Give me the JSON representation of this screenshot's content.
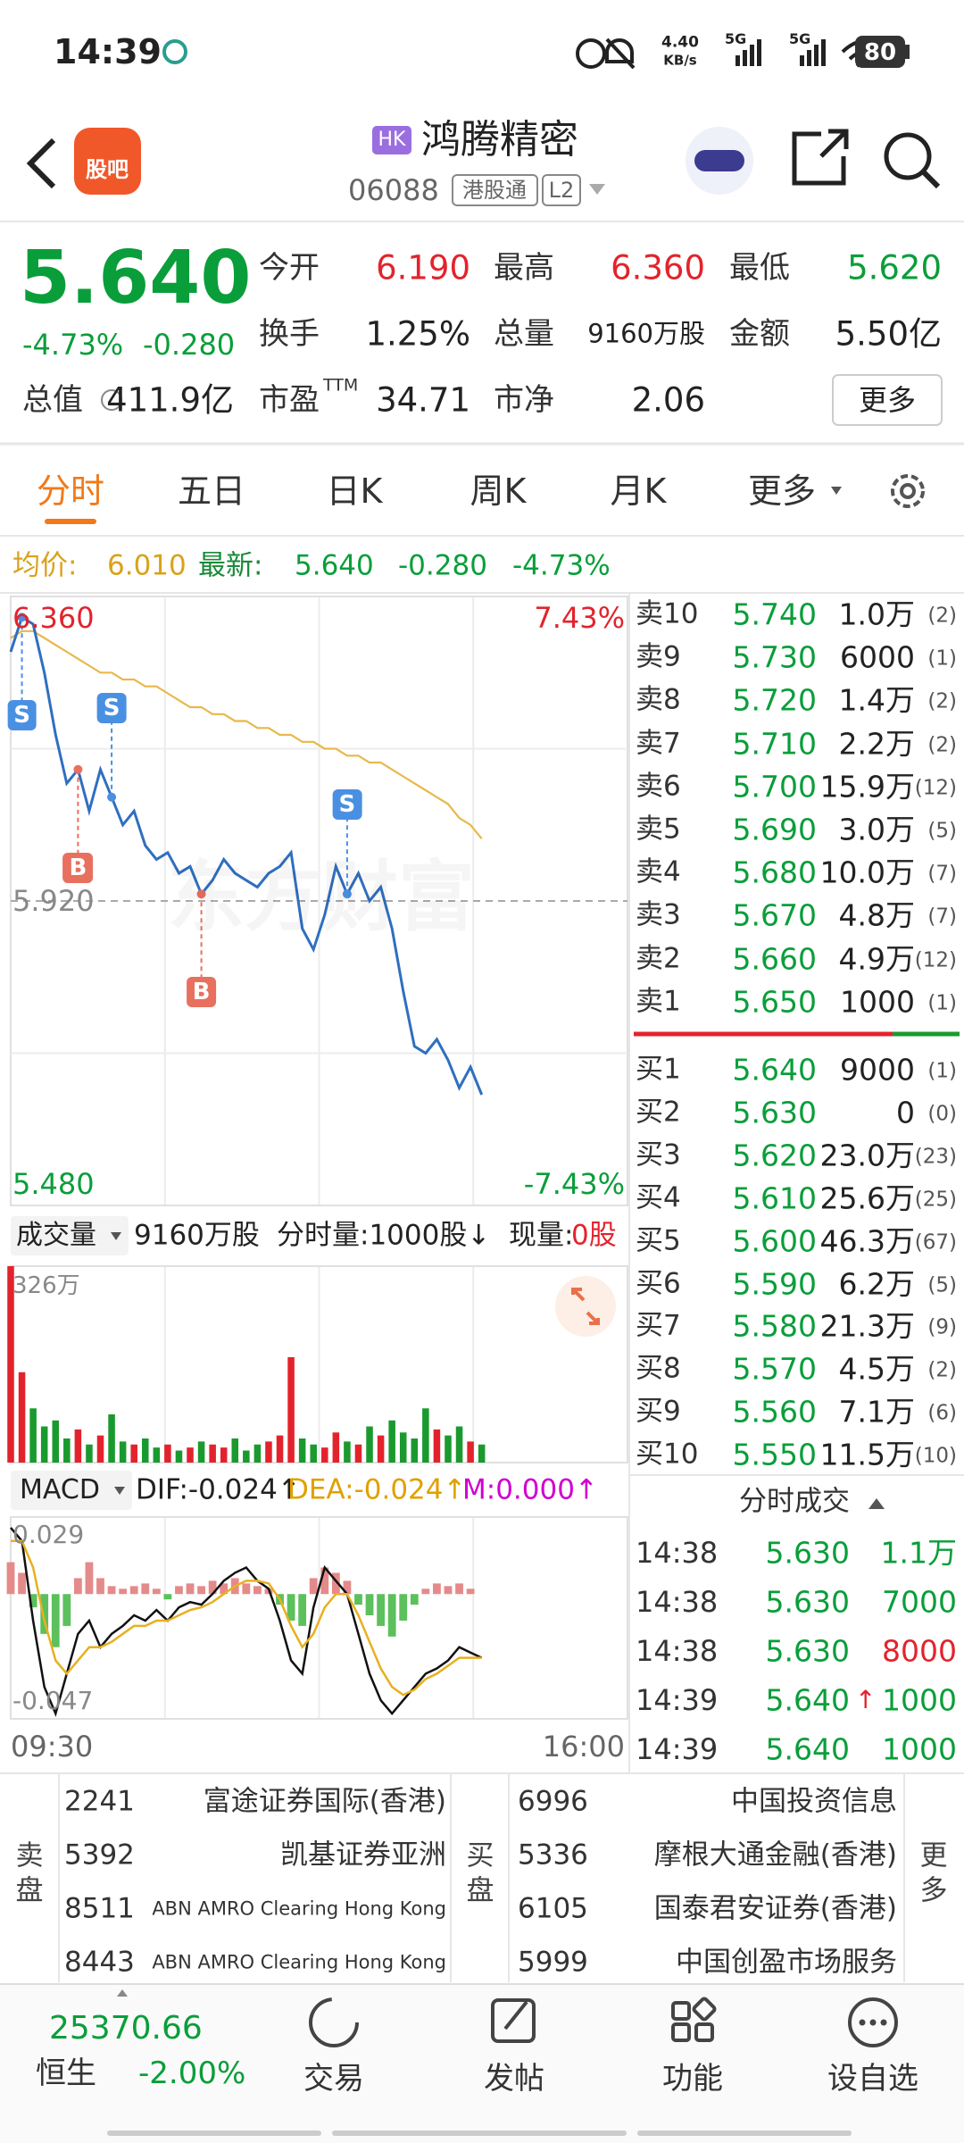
{
  "status_bar": {
    "time": "14:39",
    "speed": "4.40",
    "speed_unit": "KB/s",
    "networks": [
      "5G",
      "5G"
    ],
    "battery": "80"
  },
  "header": {
    "logo": "股吧",
    "badge": "HK",
    "name": "鸿腾精密",
    "code": "06088",
    "market": "港股通",
    "level": "L2"
  },
  "quote": {
    "price": "5.640",
    "change_pct": "-4.73%",
    "change": "-0.280",
    "fields": [
      {
        "label": "今开",
        "value": "6.190"
      },
      {
        "label": "最高",
        "value": "6.360"
      },
      {
        "label": "最低",
        "value": "5.620"
      },
      {
        "label": "换手",
        "value": "1.25%"
      },
      {
        "label": "总量",
        "value": "9160万股"
      },
      {
        "label": "金额",
        "value": "5.50亿"
      },
      {
        "label": "总值",
        "value": "411.9亿"
      },
      {
        "label": "市盈",
        "label_sup": "TTM",
        "value": "34.71"
      },
      {
        "label": "市净",
        "value": "2.06"
      }
    ],
    "more": "更多"
  },
  "tabs": [
    "分时",
    "五日",
    "日K",
    "周K",
    "月K",
    "更多"
  ],
  "info_bar": {
    "avg_label": "均价:",
    "avg": "6.010",
    "latest_label": "最新:",
    "latest": "5.640",
    "change": "-0.280",
    "change_pct": "-4.73%"
  },
  "chart_data": [
    {
      "type": "line",
      "x_labels": [
        "09:30",
        "16:00"
      ],
      "watermark": "东方财富",
      "ylim": [
        5.48,
        6.36
      ],
      "yticks": [
        {
          "value": 6.36,
          "label": "6.360"
        },
        {
          "value": 5.92,
          "label": "5.920"
        },
        {
          "value": 5.48,
          "label": "5.480"
        }
      ],
      "y2lim": [
        -7.43,
        7.43
      ],
      "y2ticks": [
        {
          "value": 7.43,
          "label": "7.43%"
        },
        {
          "value": -7.43,
          "label": "-7.43%"
        }
      ],
      "series": [
        {
          "color": "#2f6fc0",
          "values": [
            6.28,
            6.33,
            6.32,
            6.25,
            6.16,
            6.09,
            6.11,
            6.05,
            6.11,
            6.07,
            6.03,
            6.05,
            6.0,
            5.98,
            5.99,
            5.96,
            5.97,
            5.93,
            5.95,
            5.98,
            5.96,
            5.95,
            5.94,
            5.96,
            5.97,
            5.99,
            5.88,
            5.85,
            5.9,
            5.97,
            5.93,
            5.96,
            5.92,
            5.94,
            5.88,
            5.79,
            5.71,
            5.7,
            5.72,
            5.69,
            5.65,
            5.68,
            5.64,
            null,
            null,
            null,
            null,
            null,
            null,
            null,
            null,
            null,
            null,
            null,
            null,
            null
          ]
        },
        {
          "color": "#e8b84a",
          "values": [
            6.3,
            6.31,
            6.31,
            6.3,
            6.29,
            6.28,
            6.27,
            6.26,
            6.25,
            6.25,
            6.24,
            6.24,
            6.23,
            6.23,
            6.22,
            6.21,
            6.2,
            6.2,
            6.19,
            6.19,
            6.18,
            6.18,
            6.17,
            6.17,
            6.16,
            6.16,
            6.15,
            6.15,
            6.14,
            6.14,
            6.13,
            6.13,
            6.12,
            6.12,
            6.11,
            6.1,
            6.09,
            6.08,
            6.07,
            6.06,
            6.04,
            6.03,
            6.01,
            null,
            null,
            null,
            null,
            null,
            null,
            null,
            null,
            null,
            null,
            null,
            null,
            null
          ]
        }
      ],
      "annotations": [
        {
          "text": "S",
          "x": 1,
          "side": "below"
        },
        {
          "text": "B",
          "x": 6,
          "side": "below"
        },
        {
          "text": "S",
          "x": 9,
          "side": "above"
        },
        {
          "text": "B",
          "x": 17,
          "side": "below"
        },
        {
          "text": "S",
          "x": 30,
          "side": "above"
        }
      ]
    },
    {
      "type": "bar",
      "header": {
        "name": "成交量",
        "total": "9160万股",
        "unit": "分时量:1000股↓",
        "current_label": "现量:",
        "current": "0股"
      },
      "ylim": [
        0,
        326
      ],
      "yticks": [
        {
          "value": 326,
          "label": "326万"
        }
      ],
      "up_color": "#e3232c",
      "down_color": "#1a9a2e",
      "values": [
        326,
        150,
        90,
        60,
        70,
        40,
        55,
        30,
        45,
        80,
        35,
        30,
        40,
        25,
        30,
        20,
        25,
        35,
        30,
        25,
        40,
        20,
        30,
        35,
        45,
        175,
        40,
        30,
        25,
        50,
        35,
        30,
        60,
        45,
        70,
        50,
        40,
        90,
        55,
        45,
        60,
        35,
        30,
        null,
        null,
        null,
        null,
        null,
        null,
        null,
        null,
        null,
        null,
        null,
        null,
        null
      ]
    },
    {
      "type": "macd",
      "header": {
        "name": "MACD",
        "dif": "DIF:-0.024↑",
        "dea": "DEA:-0.024↑",
        "m": "M:0.000↑"
      },
      "ylim": [
        -0.047,
        0.029
      ],
      "yticks": [
        {
          "value": 0.029,
          "label": "0.029"
        },
        {
          "value": -0.047,
          "label": "-0.047"
        }
      ],
      "up_color": "#e58a8a",
      "down_color": "#5cc05c",
      "histogram": [
        0.012,
        0.008,
        -0.005,
        -0.015,
        -0.02,
        -0.012,
        0.006,
        0.012,
        0.006,
        0.003,
        0.002,
        0.003,
        0.004,
        0.002,
        -0.002,
        0.003,
        0.004,
        0.003,
        0.005,
        0.004,
        0.006,
        0.004,
        0.003,
        0.002,
        -0.004,
        -0.01,
        -0.012,
        0.006,
        0.01,
        0.008,
        0.005,
        -0.004,
        -0.008,
        -0.012,
        -0.016,
        -0.01,
        -0.004,
        0.002,
        0.004,
        0.003,
        0.004,
        0.002,
        0,
        null,
        null,
        null,
        null,
        null,
        null,
        null,
        null,
        null,
        null,
        null,
        null,
        null
      ],
      "series": [
        {
          "color": "#111111",
          "values": [
            0.025,
            0.02,
            -0.01,
            -0.035,
            -0.045,
            -0.03,
            -0.015,
            -0.01,
            -0.02,
            -0.015,
            -0.012,
            -0.008,
            -0.01,
            -0.006,
            -0.01,
            -0.005,
            -0.003,
            -0.004,
            0,
            0.005,
            0.008,
            0.01,
            0.005,
            0.002,
            -0.01,
            -0.025,
            -0.03,
            -0.005,
            0.01,
            0.005,
            0,
            -0.015,
            -0.03,
            -0.04,
            -0.045,
            -0.04,
            -0.035,
            -0.03,
            -0.028,
            -0.025,
            -0.02,
            -0.022,
            -0.024,
            null,
            null,
            null,
            null,
            null,
            null,
            null,
            null,
            null,
            null,
            null,
            null,
            null
          ]
        },
        {
          "color": "#e8b020",
          "values": [
            0.02,
            0.02,
            0.01,
            -0.01,
            -0.025,
            -0.03,
            -0.025,
            -0.02,
            -0.02,
            -0.018,
            -0.015,
            -0.012,
            -0.012,
            -0.01,
            -0.01,
            -0.008,
            -0.006,
            -0.005,
            -0.003,
            0,
            0.003,
            0.005,
            0.005,
            0.004,
            -0.002,
            -0.012,
            -0.02,
            -0.015,
            -0.005,
            0,
            0,
            -0.008,
            -0.018,
            -0.028,
            -0.035,
            -0.038,
            -0.036,
            -0.032,
            -0.03,
            -0.027,
            -0.024,
            -0.024,
            -0.024,
            null,
            null,
            null,
            null,
            null,
            null,
            null,
            null,
            null,
            null,
            null,
            null,
            null
          ]
        }
      ]
    }
  ],
  "order_book": {
    "asks": [
      [
        "卖10",
        "5.740",
        "1.0万",
        "(2)"
      ],
      [
        "卖9",
        "5.730",
        "6000",
        "(1)"
      ],
      [
        "卖8",
        "5.720",
        "1.4万",
        "(2)"
      ],
      [
        "卖7",
        "5.710",
        "2.2万",
        "(2)"
      ],
      [
        "卖6",
        "5.700",
        "15.9万",
        "(12)"
      ],
      [
        "卖5",
        "5.690",
        "3.0万",
        "(5)"
      ],
      [
        "卖4",
        "5.680",
        "10.0万",
        "(7)"
      ],
      [
        "卖3",
        "5.670",
        "4.8万",
        "(7)"
      ],
      [
        "卖2",
        "5.660",
        "4.9万",
        "(12)"
      ],
      [
        "卖1",
        "5.650",
        "1000",
        "(1)"
      ]
    ],
    "bids": [
      [
        "买1",
        "5.640",
        "9000",
        "(1)"
      ],
      [
        "买2",
        "5.630",
        "0",
        "(0)"
      ],
      [
        "买3",
        "5.620",
        "23.0万",
        "(23)"
      ],
      [
        "买4",
        "5.610",
        "25.6万",
        "(25)"
      ],
      [
        "买5",
        "5.600",
        "46.3万",
        "(67)"
      ],
      [
        "买6",
        "5.590",
        "6.2万",
        "(5)"
      ],
      [
        "买7",
        "5.580",
        "21.3万",
        "(9)"
      ],
      [
        "买8",
        "5.570",
        "4.5万",
        "(2)"
      ],
      [
        "买9",
        "5.560",
        "7.1万",
        "(6)"
      ],
      [
        "买10",
        "5.550",
        "11.5万",
        "(10)"
      ]
    ]
  },
  "trades": {
    "title": "分时成交",
    "rows": [
      [
        "14:38",
        "5.630",
        "1.1万"
      ],
      [
        "14:38",
        "5.630",
        "7000"
      ],
      [
        "14:38",
        "5.630",
        "8000"
      ],
      [
        "14:39",
        "5.640",
        "1000",
        "↑"
      ],
      [
        "14:39",
        "5.640",
        "1000"
      ]
    ]
  },
  "brokers": {
    "sell_label": "卖盘",
    "buy_label": "买盘",
    "more": "更多",
    "sell": [
      [
        "2241",
        "富途证券国际(香港)"
      ],
      [
        "5392",
        "凯基证券亚洲"
      ],
      [
        "8511",
        "ABN AMRO Clearing Hong Kong"
      ],
      [
        "8443",
        "ABN AMRO Clearing Hong Kong"
      ]
    ],
    "buy": [
      [
        "6996",
        "中国投资信息"
      ],
      [
        "5336",
        "摩根大通金融(香港)"
      ],
      [
        "6105",
        "国泰君安证券(香港)"
      ],
      [
        "5999",
        "中国创盈市场服务"
      ]
    ]
  },
  "footer": {
    "index_value": "25370.66",
    "index_name": "恒生",
    "index_change": "-2.00%"
  },
  "nav": [
    "交易",
    "发帖",
    "功能",
    "设自选"
  ]
}
